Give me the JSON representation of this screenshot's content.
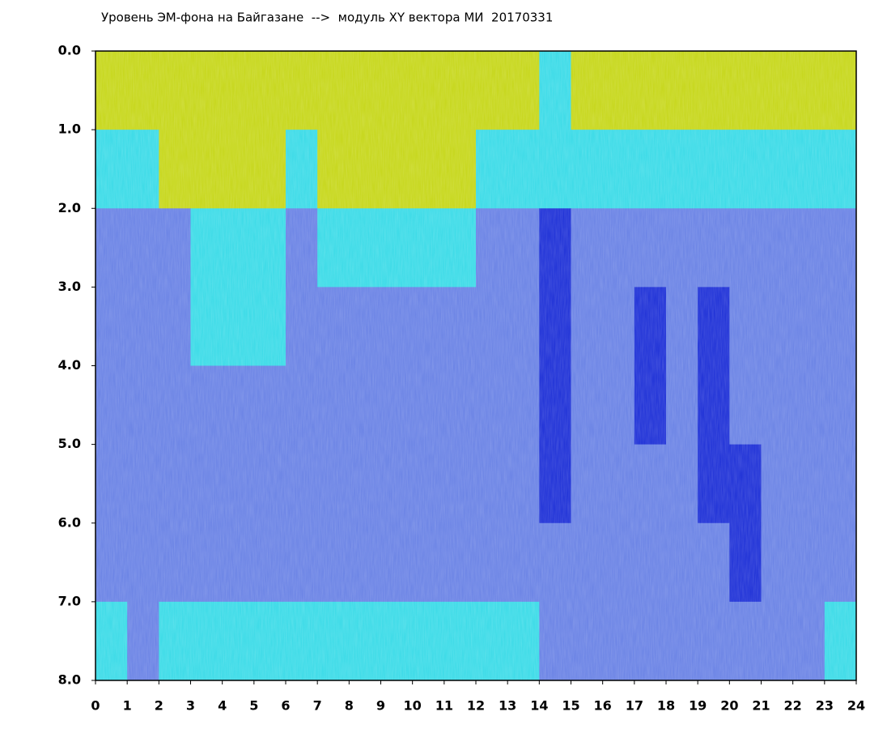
{
  "chart_data": {
    "type": "heatmap",
    "title": "Уровень ЭМ-фона на Байгазане  -->  модуль XY вектора МИ  20170331",
    "x_bins": [
      0,
      1,
      2,
      3,
      4,
      5,
      6,
      7,
      8,
      9,
      10,
      11,
      12,
      13,
      14,
      15,
      16,
      17,
      18,
      19,
      20,
      21,
      22,
      23,
      24
    ],
    "y_bins": [
      0,
      1,
      2,
      3,
      4,
      5,
      6,
      7,
      8
    ],
    "colors": [
      "#2436d8",
      "#6e86e6",
      "#40dce8",
      "#c8d820"
    ],
    "values": [
      [
        3,
        3,
        3,
        3,
        3,
        3,
        3,
        3,
        3,
        3,
        3,
        3,
        3,
        3,
        2,
        3,
        3,
        3,
        3,
        3,
        3,
        3,
        3,
        3
      ],
      [
        2,
        2,
        3,
        3,
        3,
        3,
        2,
        3,
        3,
        3,
        3,
        3,
        2,
        2,
        2,
        2,
        2,
        2,
        2,
        2,
        2,
        2,
        2,
        2
      ],
      [
        1,
        1,
        1,
        2,
        2,
        2,
        1,
        2,
        2,
        2,
        2,
        2,
        1,
        1,
        0,
        1,
        1,
        1,
        1,
        1,
        1,
        1,
        1,
        1
      ],
      [
        1,
        1,
        1,
        2,
        2,
        2,
        1,
        1,
        1,
        1,
        1,
        1,
        1,
        1,
        0,
        1,
        1,
        0,
        1,
        0,
        1,
        1,
        1,
        1
      ],
      [
        1,
        1,
        1,
        1,
        1,
        1,
        1,
        1,
        1,
        1,
        1,
        1,
        1,
        1,
        0,
        1,
        1,
        0,
        1,
        0,
        1,
        1,
        1,
        1
      ],
      [
        1,
        1,
        1,
        1,
        1,
        1,
        1,
        1,
        1,
        1,
        1,
        1,
        1,
        1,
        0,
        1,
        1,
        1,
        1,
        0,
        0,
        1,
        1,
        1
      ],
      [
        1,
        1,
        1,
        1,
        1,
        1,
        1,
        1,
        1,
        1,
        1,
        1,
        1,
        1,
        1,
        1,
        1,
        1,
        1,
        1,
        0,
        1,
        1,
        1
      ],
      [
        2,
        1,
        2,
        2,
        2,
        2,
        2,
        2,
        2,
        2,
        2,
        2,
        2,
        2,
        1,
        1,
        1,
        1,
        1,
        1,
        1,
        1,
        1,
        2
      ]
    ],
    "xlim": [
      0,
      24
    ],
    "xticks": [
      0,
      1,
      2,
      3,
      4,
      5,
      6,
      7,
      8,
      9,
      10,
      11,
      12,
      13,
      14,
      15,
      16,
      17,
      18,
      19,
      20,
      21,
      22,
      23,
      24
    ],
    "ylim": [
      0,
      8
    ],
    "y_inverted": true,
    "yticks": [
      {
        "value": 0,
        "label": "0.0"
      },
      {
        "value": 1,
        "label": "1.0"
      },
      {
        "value": 2,
        "label": "2.0"
      },
      {
        "value": 3,
        "label": "3.0"
      },
      {
        "value": 4,
        "label": "4.0"
      },
      {
        "value": 5,
        "label": "5.0"
      },
      {
        "value": 6,
        "label": "6.0"
      },
      {
        "value": 7,
        "label": "7.0"
      },
      {
        "value": 8,
        "label": "8.0"
      }
    ]
  }
}
